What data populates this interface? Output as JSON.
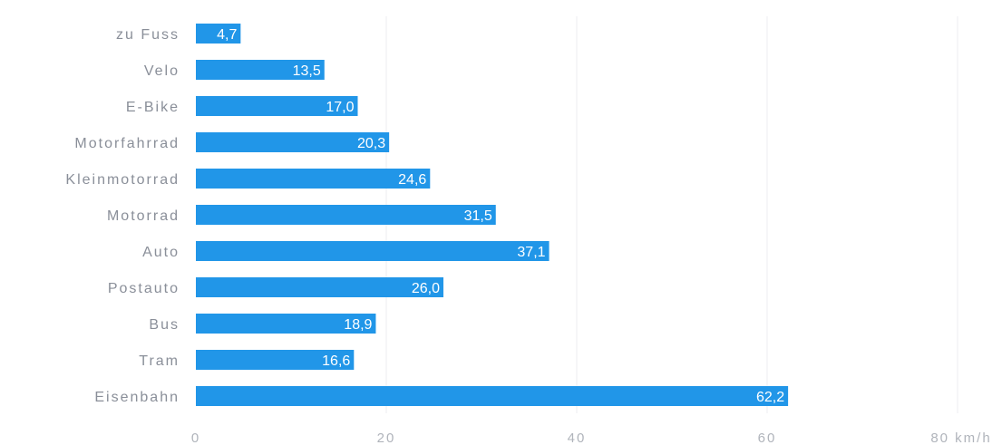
{
  "chart_data": {
    "type": "bar",
    "orientation": "horizontal",
    "categories": [
      "zu Fuss",
      "Velo",
      "E-Bike",
      "Motorfahrrad",
      "Kleinmotorrad",
      "Motorrad",
      "Auto",
      "Postauto",
      "Bus",
      "Tram",
      "Eisenbahn"
    ],
    "values": [
      4.7,
      13.5,
      17.0,
      20.3,
      24.6,
      31.5,
      37.1,
      26.0,
      18.9,
      16.6,
      62.2
    ],
    "value_labels": [
      "4,7",
      "13,5",
      "17,0",
      "20,3",
      "24,6",
      "31,5",
      "37,1",
      "26,0",
      "18,9",
      "16,6",
      "62,2"
    ],
    "xlim": [
      0,
      80
    ],
    "x_ticks": [
      0,
      20,
      40,
      60,
      80
    ],
    "x_tick_labels": [
      "0",
      "20",
      "40",
      "60",
      "80 km/h"
    ],
    "grid": true,
    "bar_color": "#2196e8"
  }
}
